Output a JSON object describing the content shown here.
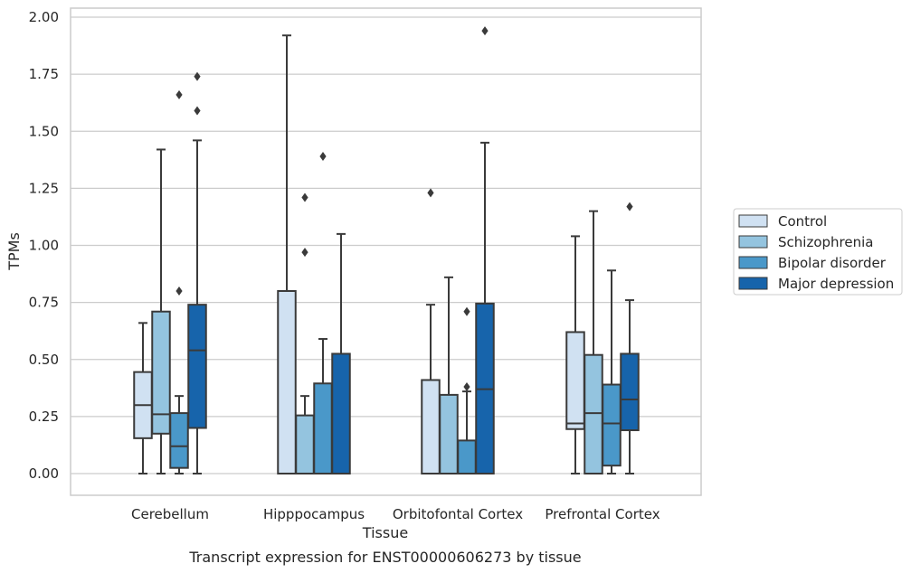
{
  "chart_data": {
    "type": "boxplot",
    "caption": "Transcript expression for ENST00000606273 by tissue",
    "xlabel": "Tissue",
    "ylabel": "TPMs",
    "ylim": [
      -0.095,
      2.04
    ],
    "yticks": [
      "0.00",
      "0.25",
      "0.50",
      "0.75",
      "1.00",
      "1.25",
      "1.50",
      "1.75",
      "2.00"
    ],
    "categories": [
      "Cerebellum",
      "Hipppocampus",
      "Orbitofontal Cortex",
      "Prefrontal Cortex"
    ],
    "grid": "horizontal",
    "legend_position": "right",
    "series": [
      {
        "name": "Control",
        "color": "#d0e1f2",
        "boxes": [
          {
            "whislo": 0.0,
            "q1": 0.155,
            "med": 0.3,
            "q3": 0.445,
            "whishi": 0.66,
            "fliers": []
          },
          {
            "whislo": 0.0,
            "q1": 0.0,
            "med": 0.0,
            "q3": 0.8,
            "whishi": 1.92,
            "fliers": []
          },
          {
            "whislo": 0.0,
            "q1": 0.0,
            "med": 0.0,
            "q3": 0.41,
            "whishi": 0.74,
            "fliers": [
              1.23
            ]
          },
          {
            "whislo": 0.0,
            "q1": 0.195,
            "med": 0.22,
            "q3": 0.62,
            "whishi": 1.04,
            "fliers": []
          }
        ]
      },
      {
        "name": "Schizophrenia",
        "color": "#94c4df",
        "boxes": [
          {
            "whislo": 0.0,
            "q1": 0.175,
            "med": 0.26,
            "q3": 0.71,
            "whishi": 1.42,
            "fliers": []
          },
          {
            "whislo": 0.0,
            "q1": 0.0,
            "med": 0.0,
            "q3": 0.255,
            "whishi": 0.34,
            "fliers": [
              0.97,
              1.21
            ]
          },
          {
            "whislo": 0.0,
            "q1": 0.0,
            "med": 0.0,
            "q3": 0.345,
            "whishi": 0.86,
            "fliers": []
          },
          {
            "whislo": 0.0,
            "q1": 0.0,
            "med": 0.265,
            "q3": 0.52,
            "whishi": 1.15,
            "fliers": []
          }
        ]
      },
      {
        "name": "Bipolar disorder",
        "color": "#4a98c9",
        "boxes": [
          {
            "whislo": 0.0,
            "q1": 0.025,
            "med": 0.12,
            "q3": 0.265,
            "whishi": 0.34,
            "fliers": [
              0.8,
              1.66
            ]
          },
          {
            "whislo": 0.0,
            "q1": 0.0,
            "med": 0.0,
            "q3": 0.395,
            "whishi": 0.59,
            "fliers": [
              1.39
            ]
          },
          {
            "whislo": 0.0,
            "q1": 0.0,
            "med": 0.0,
            "q3": 0.145,
            "whishi": 0.36,
            "fliers": [
              0.38,
              0.71
            ]
          },
          {
            "whislo": 0.0,
            "q1": 0.035,
            "med": 0.22,
            "q3": 0.39,
            "whishi": 0.89,
            "fliers": []
          }
        ]
      },
      {
        "name": "Major depression",
        "color": "#1764ab",
        "boxes": [
          {
            "whislo": 0.0,
            "q1": 0.2,
            "med": 0.54,
            "q3": 0.74,
            "whishi": 1.46,
            "fliers": [
              1.59,
              1.74
            ]
          },
          {
            "whislo": 0.0,
            "q1": 0.0,
            "med": 0.0,
            "q3": 0.525,
            "whishi": 1.05,
            "fliers": []
          },
          {
            "whislo": 0.0,
            "q1": 0.0,
            "med": 0.37,
            "q3": 0.745,
            "whishi": 1.45,
            "fliers": [
              1.94
            ]
          },
          {
            "whislo": 0.0,
            "q1": 0.19,
            "med": 0.325,
            "q3": 0.525,
            "whishi": 0.76,
            "fliers": [
              1.17
            ]
          }
        ]
      }
    ]
  }
}
